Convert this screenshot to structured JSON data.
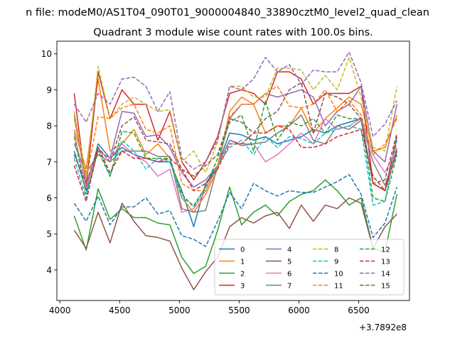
{
  "chart_data": {
    "type": "line",
    "suptitle": "n file: modeM0/AS1T04_090T01_9000004840_33890cztM0_level2_quad_clean",
    "title": "Quadrant 3 module wise count rates with 100.0s bins.",
    "xlabel": "",
    "ylabel": "",
    "x_offset_label": "+3.7892e8",
    "x": [
      4120,
      4220,
      4320,
      4420,
      4520,
      4620,
      4720,
      4820,
      4920,
      5020,
      5120,
      5220,
      5320,
      5420,
      5520,
      5620,
      5720,
      5820,
      5920,
      6020,
      6120,
      6220,
      6320,
      6420,
      6520,
      6620,
      6720,
      6820
    ],
    "xlim": [
      3975,
      6925
    ],
    "ylim": [
      3.15,
      10.35
    ],
    "xticks": [
      4000,
      4500,
      5000,
      5500,
      6000,
      6500
    ],
    "yticks": [
      4,
      5,
      6,
      7,
      8,
      9,
      10
    ],
    "grid": false,
    "legend": {
      "position": "lower-right",
      "columns": 4
    },
    "series": [
      {
        "name": "0",
        "color": "#1f77b4",
        "dash": "solid",
        "values": [
          7.3,
          6.2,
          7.5,
          7.1,
          7.4,
          7.2,
          7.1,
          7.0,
          7.0,
          6.2,
          5.2,
          6.4,
          6.9,
          7.8,
          7.75,
          7.6,
          7.7,
          7.5,
          7.6,
          7.7,
          7.9,
          7.8,
          8.0,
          8.1,
          8.2,
          6.4,
          6.2,
          7.3
        ]
      },
      {
        "name": "1",
        "color": "#ff7f0e",
        "dash": "solid",
        "values": [
          7.9,
          6.8,
          9.3,
          7.3,
          7.5,
          7.9,
          7.2,
          7.5,
          7.1,
          6.0,
          5.6,
          6.1,
          6.8,
          8.4,
          8.8,
          8.6,
          7.8,
          8.0,
          8.0,
          8.5,
          7.8,
          8.2,
          8.5,
          8.8,
          8.6,
          7.3,
          7.4,
          8.3
        ]
      },
      {
        "name": "2",
        "color": "#2ca02c",
        "dash": "solid",
        "values": [
          5.5,
          4.55,
          6.25,
          5.4,
          5.7,
          5.45,
          5.45,
          5.3,
          5.25,
          4.35,
          3.9,
          4.1,
          5.1,
          6.3,
          5.25,
          5.6,
          5.8,
          5.5,
          5.9,
          6.1,
          6.2,
          6.5,
          6.2,
          5.8,
          6.0,
          4.6,
          4.5,
          6.1
        ]
      },
      {
        "name": "3",
        "color": "#d62728",
        "dash": "solid",
        "values": [
          8.9,
          6.3,
          9.5,
          8.2,
          9.0,
          8.6,
          8.6,
          7.6,
          8.4,
          7.0,
          6.5,
          7.0,
          7.7,
          8.9,
          9.0,
          8.9,
          8.6,
          9.5,
          9.5,
          9.3,
          8.6,
          8.9,
          8.9,
          8.9,
          9.1,
          6.4,
          6.2,
          7.7
        ]
      },
      {
        "name": "4",
        "color": "#9467bd",
        "dash": "solid",
        "values": [
          8.3,
          6.4,
          7.3,
          7.1,
          8.4,
          8.35,
          7.7,
          7.75,
          7.4,
          6.7,
          6.3,
          6.5,
          6.9,
          8.2,
          8.6,
          8.6,
          8.9,
          8.8,
          8.9,
          9.0,
          8.8,
          8.0,
          8.4,
          8.6,
          9.1,
          7.3,
          7.0,
          8.6
        ]
      },
      {
        "name": "5",
        "color": "#8c564b",
        "dash": "solid",
        "values": [
          5.1,
          4.6,
          5.6,
          4.75,
          5.85,
          5.35,
          4.95,
          4.9,
          4.8,
          4.05,
          3.45,
          3.95,
          4.35,
          5.2,
          5.45,
          5.3,
          5.5,
          5.6,
          5.15,
          5.8,
          5.35,
          5.8,
          5.7,
          6.0,
          5.85,
          4.6,
          5.2,
          5.55
        ]
      },
      {
        "name": "6",
        "color": "#e377c2",
        "dash": "solid",
        "values": [
          7.8,
          6.3,
          7.3,
          7.1,
          7.5,
          7.2,
          7.0,
          6.6,
          6.8,
          5.6,
          5.7,
          6.2,
          6.9,
          7.6,
          7.5,
          7.5,
          7.0,
          7.2,
          7.5,
          7.8,
          7.5,
          8.2,
          7.9,
          8.0,
          8.2,
          7.2,
          6.7,
          7.4
        ]
      },
      {
        "name": "7",
        "color": "#7f7f7f",
        "dash": "solid",
        "values": [
          7.5,
          6.7,
          7.2,
          7.0,
          7.3,
          7.3,
          7.3,
          7.15,
          7.15,
          5.7,
          5.6,
          5.65,
          6.9,
          7.6,
          7.45,
          7.5,
          7.55,
          7.8,
          8.0,
          8.3,
          7.6,
          7.5,
          8.0,
          7.9,
          8.15,
          7.0,
          6.35,
          7.35
        ]
      },
      {
        "name": "8",
        "color": "#bcbd22",
        "dash": "dashed",
        "values": [
          8.4,
          6.6,
          9.65,
          8.2,
          8.6,
          8.8,
          8.6,
          8.4,
          8.45,
          7.0,
          7.3,
          6.7,
          7.55,
          9.1,
          9.1,
          8.8,
          8.8,
          9.6,
          9.6,
          9.55,
          9.0,
          9.4,
          9.0,
          9.9,
          8.8,
          7.4,
          7.3,
          9.1
        ]
      },
      {
        "name": "9",
        "color": "#17becf",
        "dash": "dashed",
        "values": [
          7.1,
          6.0,
          7.4,
          6.6,
          7.6,
          7.3,
          6.8,
          7.1,
          7.0,
          6.0,
          5.8,
          6.3,
          6.9,
          7.4,
          7.6,
          7.2,
          7.7,
          7.4,
          7.7,
          7.65,
          7.5,
          7.8,
          7.9,
          8.0,
          7.9,
          5.8,
          5.9,
          7.6
        ]
      },
      {
        "name": "10",
        "color": "#1f77b4",
        "dash": "dashed",
        "values": [
          5.85,
          5.35,
          6.05,
          5.25,
          5.75,
          5.75,
          6.0,
          5.55,
          5.65,
          4.95,
          4.85,
          4.65,
          5.35,
          6.15,
          5.7,
          6.4,
          6.2,
          6.05,
          6.2,
          6.15,
          6.15,
          6.3,
          6.45,
          6.65,
          6.1,
          4.9,
          5.3,
          6.3
        ]
      },
      {
        "name": "11",
        "color": "#ff7f0e",
        "dash": "dashed",
        "values": [
          8.2,
          6.5,
          8.25,
          8.2,
          8.5,
          8.6,
          7.9,
          7.8,
          8.0,
          6.4,
          6.2,
          6.2,
          6.9,
          8.25,
          8.6,
          8.6,
          8.9,
          9.1,
          8.55,
          8.5,
          8.6,
          9.0,
          8.4,
          8.7,
          8.3,
          7.2,
          7.5,
          8.2
        ]
      },
      {
        "name": "12",
        "color": "#2ca02c",
        "dash": "dashed",
        "values": [
          7.7,
          6.1,
          7.3,
          6.6,
          7.85,
          7.8,
          7.1,
          7.1,
          7.1,
          6.1,
          5.75,
          6.3,
          7.1,
          8.1,
          8.3,
          7.3,
          8.7,
          7.6,
          8.1,
          8.0,
          8.2,
          7.8,
          8.3,
          8.2,
          8.2,
          6.0,
          5.9,
          7.2
        ]
      },
      {
        "name": "13",
        "color": "#d62728",
        "dash": "dashed",
        "values": [
          6.9,
          5.9,
          7.4,
          6.7,
          7.3,
          7.1,
          7.1,
          7.0,
          7.1,
          6.8,
          6.2,
          6.4,
          6.8,
          7.5,
          7.5,
          7.8,
          7.8,
          8.0,
          7.9,
          7.4,
          7.4,
          7.5,
          7.7,
          7.8,
          7.9,
          6.6,
          6.2,
          7.3
        ]
      },
      {
        "name": "14",
        "color": "#9467bd",
        "dash": "dashed",
        "values": [
          8.6,
          8.1,
          8.9,
          8.6,
          9.3,
          9.35,
          9.1,
          8.4,
          8.95,
          7.1,
          6.8,
          7.0,
          7.6,
          9.1,
          9.0,
          9.3,
          9.9,
          9.5,
          9.7,
          9.15,
          9.55,
          9.5,
          9.5,
          10.05,
          9.2,
          7.7,
          8.05,
          8.7
        ]
      },
      {
        "name": "15",
        "color": "#8c564b",
        "dash": "dashed",
        "values": [
          7.2,
          6.4,
          7.4,
          7.0,
          8.0,
          8.25,
          7.6,
          7.55,
          7.5,
          6.8,
          6.6,
          6.9,
          7.2,
          8.2,
          8.1,
          7.8,
          8.2,
          8.4,
          9.0,
          9.2,
          7.8,
          8.9,
          8.8,
          8.6,
          8.2,
          6.4,
          6.5,
          7.8
        ]
      }
    ]
  }
}
